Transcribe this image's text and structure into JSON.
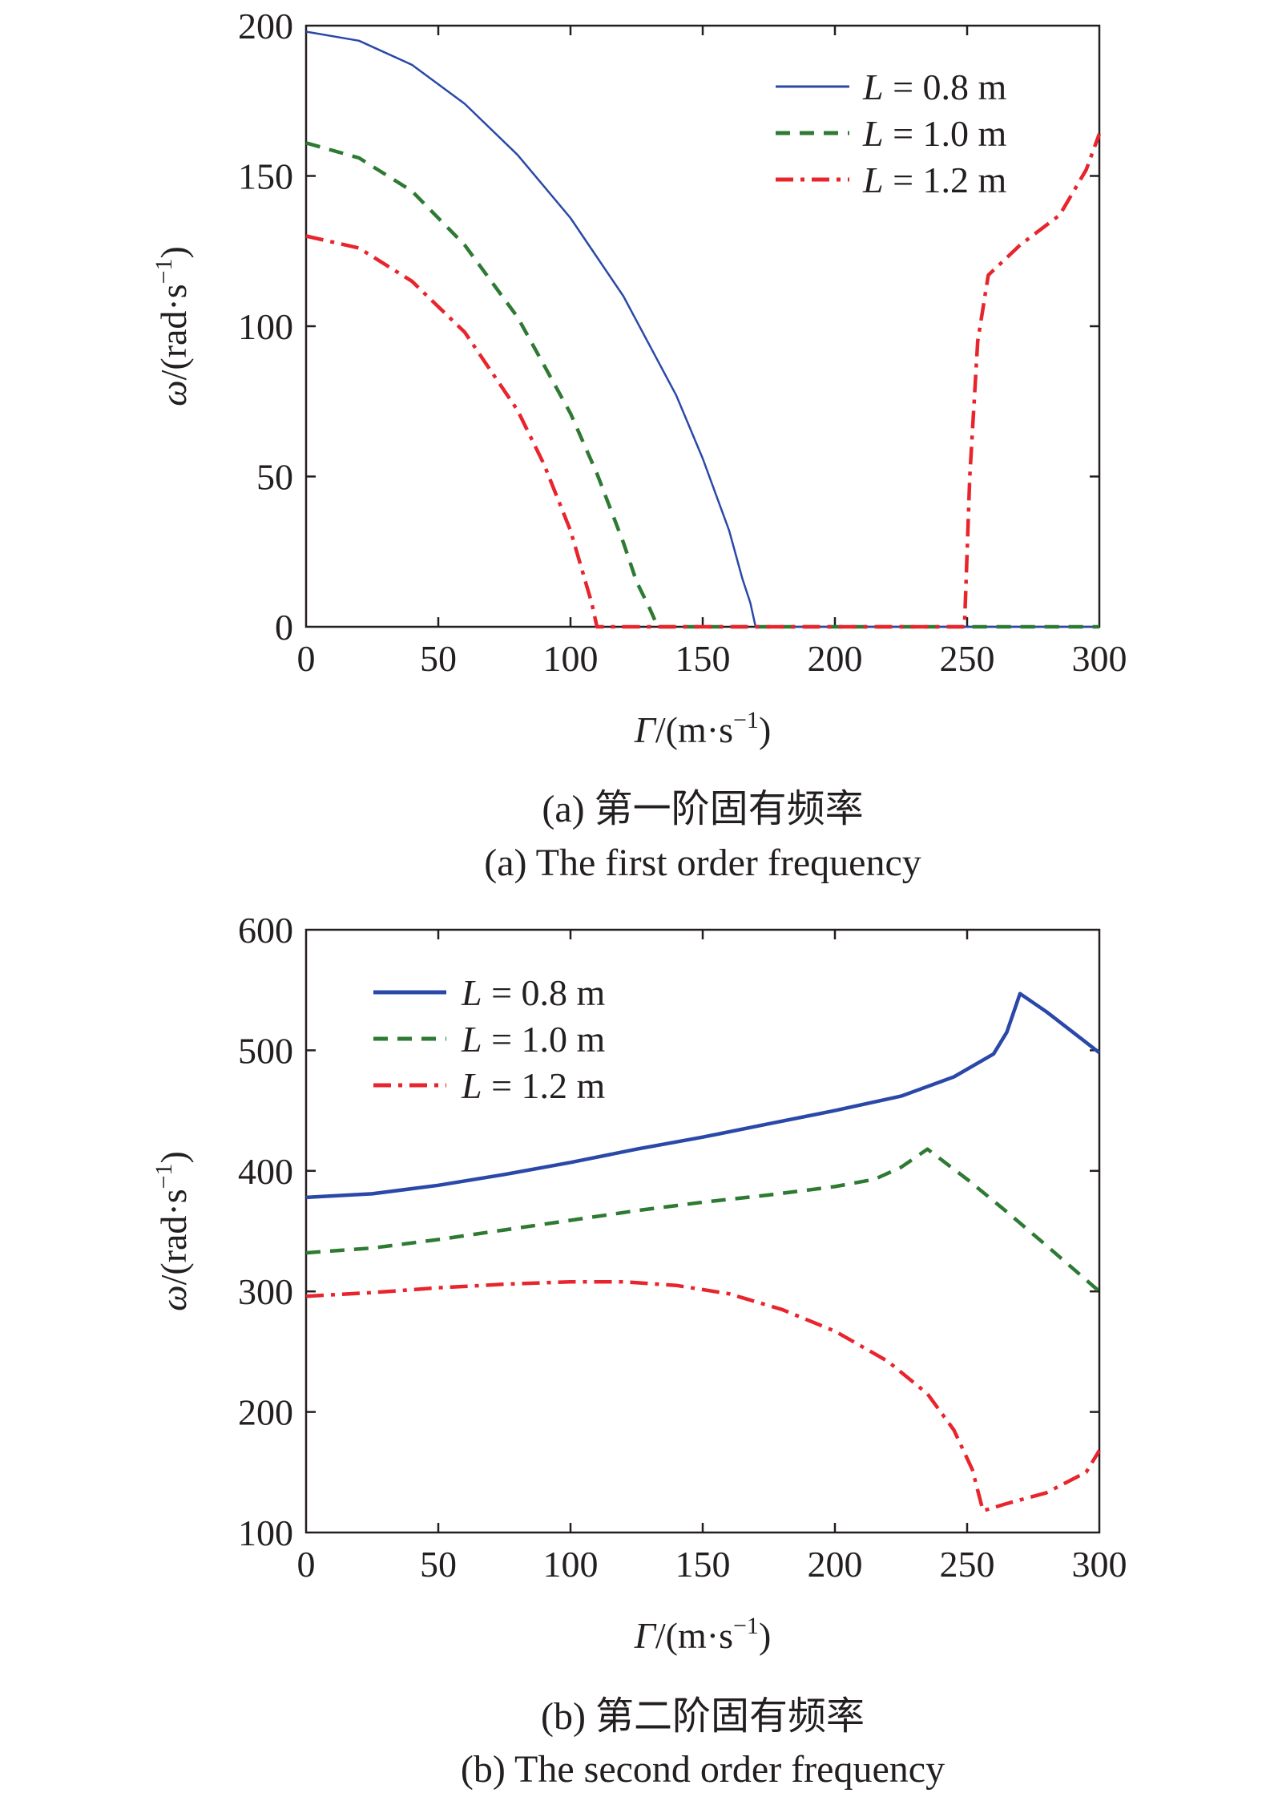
{
  "colors": {
    "L08": "#2a48a8",
    "L10": "#2e7a33",
    "L12": "#e8242c",
    "axis": "#231f20"
  },
  "chart_data": [
    {
      "type": "line",
      "xlabel_italic": "Γ",
      "xlabel_rest": "/(m·s",
      "xlabel_sup": "−1",
      "xlabel_close": ")",
      "ylabel_italic": "ω",
      "ylabel_rest": "/(rad·s",
      "ylabel_sup": "−1",
      "ylabel_close": ")",
      "xlim": [
        0,
        300
      ],
      "ylim": [
        0,
        200
      ],
      "xticks": [
        "0",
        "50",
        "100",
        "150",
        "200",
        "250",
        "300"
      ],
      "yticks": [
        "0",
        "50",
        "100",
        "150",
        "200"
      ],
      "legend_position": "top-right",
      "caption_cn": "(a) 第一阶固有频率",
      "caption_en": "(a) The first order frequency",
      "series": [
        {
          "name": "L = 0.8 m",
          "symbol": "L",
          "value_text": " = 0.8 m",
          "style": "solid",
          "x": [
            0,
            20,
            40,
            60,
            80,
            100,
            120,
            140,
            150,
            160,
            165,
            168,
            170,
            172,
            200,
            250,
            300
          ],
          "y": [
            198,
            195,
            187,
            174,
            157,
            136,
            110,
            77,
            56,
            32,
            16,
            8,
            0,
            0,
            0,
            0,
            0
          ]
        },
        {
          "name": "L = 1.0 m",
          "symbol": "L",
          "value_text": " = 1.0 m",
          "style": "dash",
          "x": [
            0,
            20,
            40,
            60,
            80,
            100,
            110,
            120,
            125,
            130,
            133,
            135,
            150,
            200,
            250,
            300
          ],
          "y": [
            161,
            156,
            145,
            127,
            103,
            71,
            51,
            28,
            15,
            6,
            0,
            0,
            0,
            0,
            0,
            0
          ]
        },
        {
          "name": "L = 1.2 m",
          "symbol": "L",
          "value_text": " = 1.2 m",
          "style": "dashdot",
          "x": [
            0,
            20,
            40,
            60,
            80,
            90,
            100,
            105,
            108,
            110,
            112,
            150,
            200,
            249,
            251,
            254,
            258,
            270,
            285,
            295,
            300
          ],
          "y": [
            130,
            126,
            115,
            98,
            72,
            54,
            32,
            17,
            8,
            0,
            0,
            0,
            0,
            0,
            50,
            95,
            117,
            127,
            137,
            152,
            164
          ]
        }
      ]
    },
    {
      "type": "line",
      "xlabel_italic": "Γ",
      "xlabel_rest": "/(m·s",
      "xlabel_sup": "−1",
      "xlabel_close": ")",
      "ylabel_italic": "ω",
      "ylabel_rest": "/(rad·s",
      "ylabel_sup": "−1",
      "ylabel_close": ")",
      "xlim": [
        0,
        300
      ],
      "ylim": [
        100,
        600
      ],
      "xticks": [
        "0",
        "50",
        "100",
        "150",
        "200",
        "250",
        "300"
      ],
      "yticks": [
        "100",
        "200",
        "300",
        "400",
        "500",
        "600"
      ],
      "legend_position": "top-left",
      "caption_cn": "(b) 第二阶固有频率",
      "caption_en": "(b) The second order frequency",
      "series": [
        {
          "name": "L = 0.8 m",
          "symbol": "L",
          "value_text": " = 0.8 m",
          "style": "solid",
          "x": [
            0,
            25,
            50,
            75,
            100,
            125,
            150,
            175,
            200,
            225,
            245,
            260,
            265,
            270,
            280,
            290,
            300
          ],
          "y": [
            378,
            381,
            388,
            397,
            407,
            418,
            428,
            439,
            450,
            462,
            478,
            497,
            515,
            547,
            532,
            515,
            498
          ]
        },
        {
          "name": "L = 1.0 m",
          "symbol": "L",
          "value_text": " = 1.0 m",
          "style": "dash",
          "x": [
            0,
            25,
            50,
            75,
            100,
            125,
            150,
            175,
            200,
            215,
            225,
            235,
            250,
            265,
            280,
            300
          ],
          "y": [
            332,
            336,
            343,
            351,
            359,
            367,
            374,
            380,
            387,
            393,
            403,
            418,
            393,
            366,
            338,
            300
          ]
        },
        {
          "name": "L = 1.2 m",
          "symbol": "L",
          "value_text": " = 1.2 m",
          "style": "dashdot",
          "x": [
            0,
            25,
            50,
            75,
            100,
            120,
            140,
            160,
            180,
            200,
            220,
            235,
            245,
            252,
            256,
            265,
            280,
            295,
            300
          ],
          "y": [
            296,
            299,
            303,
            306,
            308,
            308,
            305,
            298,
            285,
            267,
            242,
            215,
            185,
            152,
            118,
            124,
            133,
            150,
            168
          ]
        }
      ]
    }
  ]
}
